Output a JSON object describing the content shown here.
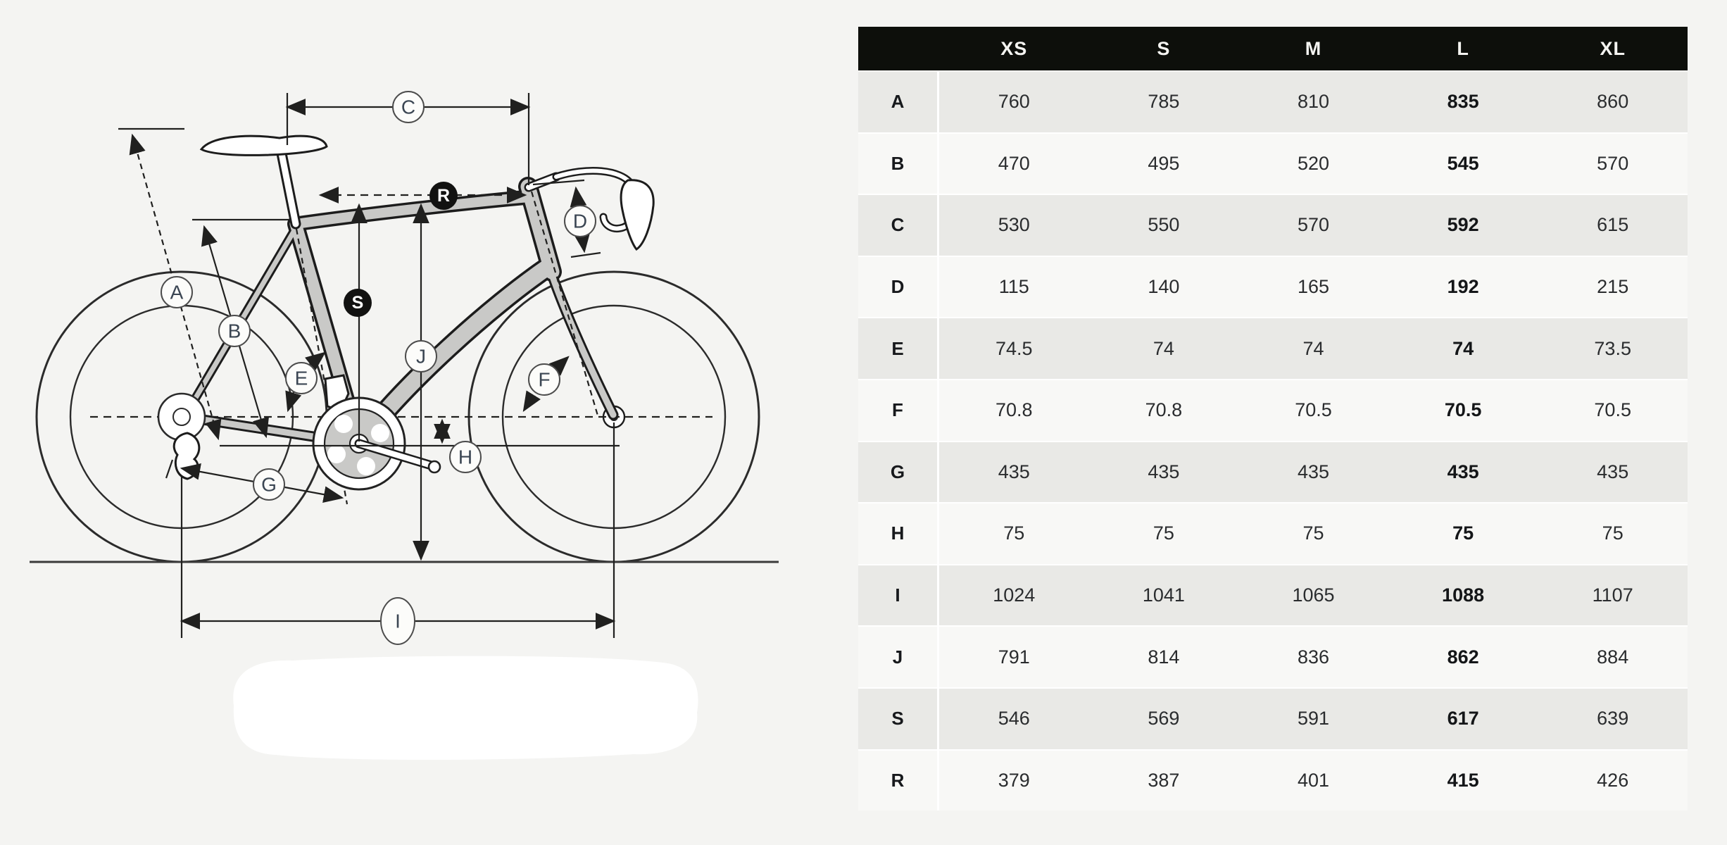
{
  "page": {
    "background": "#f4f4f2"
  },
  "diagram": {
    "description": "bike-geometry-drawing",
    "frame_color": "#c9c9c7",
    "line_color": "#1c1c1c",
    "badge_labels": {
      "a": "A",
      "b": "B",
      "c": "C",
      "d": "D",
      "e": "E",
      "f": "F",
      "g": "G",
      "h": "H",
      "i": "I",
      "j": "J",
      "s": "S",
      "r": "R"
    }
  },
  "table": {
    "header": {
      "bg": "#0d0f0b",
      "text_color": "#f4f4f1",
      "columns": [
        "XS",
        "S",
        "M",
        "L",
        "XL"
      ]
    },
    "highlight_column": "L",
    "row_stripe_colors": {
      "odd": "#e9e9e6",
      "even": "#f8f8f6"
    },
    "rows": [
      {
        "label": "A",
        "values": [
          "760",
          "785",
          "810",
          "835",
          "860"
        ]
      },
      {
        "label": "B",
        "values": [
          "470",
          "495",
          "520",
          "545",
          "570"
        ]
      },
      {
        "label": "C",
        "values": [
          "530",
          "550",
          "570",
          "592",
          "615"
        ]
      },
      {
        "label": "D",
        "values": [
          "115",
          "140",
          "165",
          "192",
          "215"
        ]
      },
      {
        "label": "E",
        "values": [
          "74.5",
          "74",
          "74",
          "74",
          "73.5"
        ]
      },
      {
        "label": "F",
        "values": [
          "70.8",
          "70.8",
          "70.5",
          "70.5",
          "70.5"
        ]
      },
      {
        "label": "G",
        "values": [
          "435",
          "435",
          "435",
          "435",
          "435"
        ]
      },
      {
        "label": "H",
        "values": [
          "75",
          "75",
          "75",
          "75",
          "75"
        ]
      },
      {
        "label": "I",
        "values": [
          "1024",
          "1041",
          "1065",
          "1088",
          "1107"
        ]
      },
      {
        "label": "J",
        "values": [
          "791",
          "814",
          "836",
          "862",
          "884"
        ]
      },
      {
        "label": "S",
        "values": [
          "546",
          "569",
          "591",
          "617",
          "639"
        ]
      },
      {
        "label": "R",
        "values": [
          "379",
          "387",
          "401",
          "415",
          "426"
        ]
      }
    ]
  }
}
